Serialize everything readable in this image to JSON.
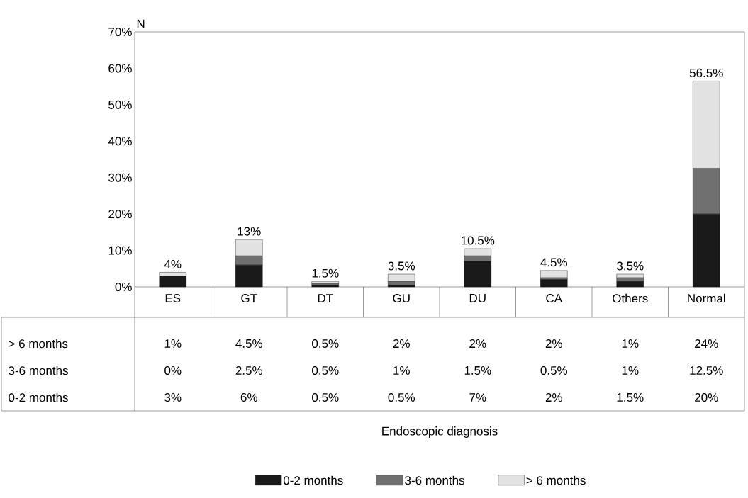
{
  "chart_data": {
    "type": "bar",
    "stacked": true,
    "ylabel": "N",
    "annotations": [
      "Endoscopic diagnosis"
    ],
    "categories": [
      "ES",
      "GT",
      "DT",
      "GU",
      "DU",
      "CA",
      "Others",
      "Normal"
    ],
    "series": [
      {
        "name": "0-2 months",
        "color": "#1a1a1a",
        "values": [
          3,
          6,
          0.5,
          0.5,
          7,
          2,
          1.5,
          20
        ],
        "value_labels": [
          "3%",
          "6%",
          "0.5%",
          "0.5%",
          "7%",
          "2%",
          "1.5%",
          "20%"
        ]
      },
      {
        "name": "3-6 months",
        "color": "#707070",
        "values": [
          0,
          2.5,
          0.5,
          1,
          1.5,
          0.5,
          1,
          12.5
        ],
        "value_labels": [
          "0%",
          "2.5%",
          "0.5%",
          "1%",
          "1.5%",
          "0.5%",
          "1%",
          "12.5%"
        ]
      },
      {
        "name": "> 6 months",
        "color": "#e2e2e2",
        "values": [
          1,
          4.5,
          0.5,
          2,
          2,
          2,
          1,
          24
        ],
        "value_labels": [
          "1%",
          "4.5%",
          "0.5%",
          "2%",
          "2%",
          "2%",
          "1%",
          "24%"
        ]
      }
    ],
    "totals": [
      "4%",
      "13%",
      "1.5%",
      "3.5%",
      "10.5%",
      "4.5%",
      "3.5%",
      "56.5%"
    ],
    "ylim": [
      0,
      70
    ],
    "yticks": [
      {
        "value": 0,
        "label": "0%"
      },
      {
        "value": 10,
        "label": "10%"
      },
      {
        "value": 20,
        "label": "20%"
      },
      {
        "value": 30,
        "label": "30%"
      },
      {
        "value": 40,
        "label": "40%"
      },
      {
        "value": 50,
        "label": "50%"
      },
      {
        "value": 60,
        "label": "60%"
      },
      {
        "value": 70,
        "label": "70%"
      }
    ],
    "legend": "bottom"
  }
}
